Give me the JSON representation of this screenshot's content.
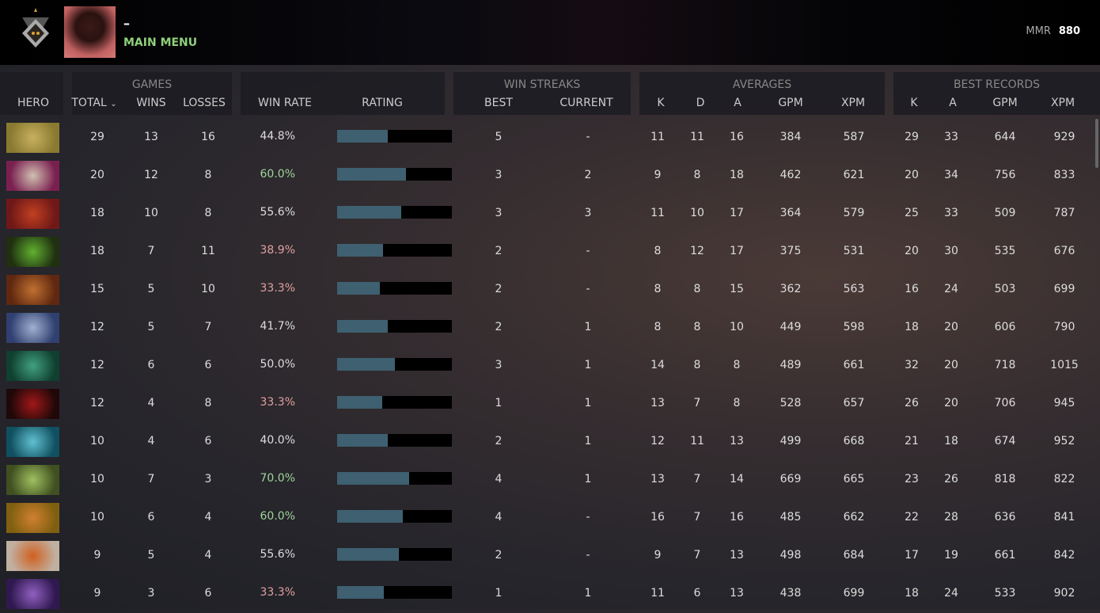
{
  "header": {
    "player_name": "–",
    "main_menu": "MAIN MENU",
    "mmr_label": "MMR",
    "mmr_value": "880"
  },
  "columns": {
    "hero": "HERO",
    "games": "GAMES",
    "total": "TOTAL",
    "sort_icon": "chevron-down-icon",
    "wins": "WINS",
    "losses": "LOSSES",
    "win_rate": "WIN RATE",
    "rating": "RATING",
    "win_streaks": "WIN STREAKS",
    "best": "BEST",
    "current": "CURRENT",
    "averages": "AVERAGES",
    "k": "K",
    "d": "D",
    "a": "A",
    "gpm": "GPM",
    "xpm": "XPM",
    "best_records": "BEST RECORDS"
  },
  "colors": {
    "win_rate_high": "#9fd59a",
    "win_rate_low": "#e0a0a0",
    "bar_fill": "#3e6070",
    "accent": "#8fd07a"
  },
  "rows": [
    {
      "hero_color": [
        "#8a7a30",
        "#c8b060"
      ],
      "total": "29",
      "wins": "13",
      "losses": "16",
      "win_rate": "44.8%",
      "rating": 0.44,
      "best": "5",
      "current": "-",
      "k": "11",
      "d": "11",
      "a": "16",
      "gpm": "384",
      "xpm": "587",
      "br_k": "29",
      "br_a": "33",
      "br_gpm": "644",
      "br_xpm": "929"
    },
    {
      "hero_color": [
        "#7a2050",
        "#d0c0b0"
      ],
      "total": "20",
      "wins": "12",
      "losses": "8",
      "win_rate": "60.0%",
      "rating": 0.6,
      "best": "3",
      "current": "2",
      "k": "9",
      "d": "8",
      "a": "18",
      "gpm": "462",
      "xpm": "621",
      "br_k": "20",
      "br_a": "34",
      "br_gpm": "756",
      "br_xpm": "833"
    },
    {
      "hero_color": [
        "#701818",
        "#c04020"
      ],
      "total": "18",
      "wins": "10",
      "losses": "8",
      "win_rate": "55.6%",
      "rating": 0.56,
      "best": "3",
      "current": "3",
      "k": "11",
      "d": "10",
      "a": "17",
      "gpm": "364",
      "xpm": "579",
      "br_k": "25",
      "br_a": "33",
      "br_gpm": "509",
      "br_xpm": "787"
    },
    {
      "hero_color": [
        "#203010",
        "#60b030"
      ],
      "total": "18",
      "wins": "7",
      "losses": "11",
      "win_rate": "38.9%",
      "rating": 0.4,
      "best": "2",
      "current": "-",
      "k": "8",
      "d": "12",
      "a": "17",
      "gpm": "375",
      "xpm": "531",
      "br_k": "20",
      "br_a": "30",
      "br_gpm": "535",
      "br_xpm": "676"
    },
    {
      "hero_color": [
        "#602810",
        "#c07030"
      ],
      "total": "15",
      "wins": "5",
      "losses": "10",
      "win_rate": "33.3%",
      "rating": 0.37,
      "best": "2",
      "current": "-",
      "k": "8",
      "d": "8",
      "a": "15",
      "gpm": "362",
      "xpm": "563",
      "br_k": "16",
      "br_a": "24",
      "br_gpm": "503",
      "br_xpm": "699"
    },
    {
      "hero_color": [
        "#304070",
        "#a0b0d0"
      ],
      "total": "12",
      "wins": "5",
      "losses": "7",
      "win_rate": "41.7%",
      "rating": 0.44,
      "best": "2",
      "current": "1",
      "k": "8",
      "d": "8",
      "a": "10",
      "gpm": "449",
      "xpm": "598",
      "br_k": "18",
      "br_a": "20",
      "br_gpm": "606",
      "br_xpm": "790"
    },
    {
      "hero_color": [
        "#104030",
        "#40a080"
      ],
      "total": "12",
      "wins": "6",
      "losses": "6",
      "win_rate": "50.0%",
      "rating": 0.5,
      "best": "3",
      "current": "1",
      "k": "14",
      "d": "8",
      "a": "8",
      "gpm": "489",
      "xpm": "661",
      "br_k": "32",
      "br_a": "20",
      "br_gpm": "718",
      "br_xpm": "1015"
    },
    {
      "hero_color": [
        "#200808",
        "#a01818"
      ],
      "total": "12",
      "wins": "4",
      "losses": "8",
      "win_rate": "33.3%",
      "rating": 0.39,
      "best": "1",
      "current": "1",
      "k": "13",
      "d": "7",
      "a": "8",
      "gpm": "528",
      "xpm": "657",
      "br_k": "26",
      "br_a": "20",
      "br_gpm": "706",
      "br_xpm": "945"
    },
    {
      "hero_color": [
        "#105060",
        "#60c0d0"
      ],
      "total": "10",
      "wins": "4",
      "losses": "6",
      "win_rate": "40.0%",
      "rating": 0.44,
      "best": "2",
      "current": "1",
      "k": "12",
      "d": "11",
      "a": "13",
      "gpm": "499",
      "xpm": "668",
      "br_k": "21",
      "br_a": "18",
      "br_gpm": "674",
      "br_xpm": "952"
    },
    {
      "hero_color": [
        "#405020",
        "#a0c060"
      ],
      "total": "10",
      "wins": "7",
      "losses": "3",
      "win_rate": "70.0%",
      "rating": 0.63,
      "best": "4",
      "current": "1",
      "k": "13",
      "d": "7",
      "a": "14",
      "gpm": "669",
      "xpm": "665",
      "br_k": "23",
      "br_a": "26",
      "br_gpm": "818",
      "br_xpm": "822"
    },
    {
      "hero_color": [
        "#806010",
        "#d08030"
      ],
      "total": "10",
      "wins": "6",
      "losses": "4",
      "win_rate": "60.0%",
      "rating": 0.57,
      "best": "4",
      "current": "-",
      "k": "16",
      "d": "7",
      "a": "16",
      "gpm": "485",
      "xpm": "662",
      "br_k": "22",
      "br_a": "28",
      "br_gpm": "636",
      "br_xpm": "841"
    },
    {
      "hero_color": [
        "#c0b0a0",
        "#d06020"
      ],
      "total": "9",
      "wins": "5",
      "losses": "4",
      "win_rate": "55.6%",
      "rating": 0.54,
      "best": "2",
      "current": "-",
      "k": "9",
      "d": "7",
      "a": "13",
      "gpm": "498",
      "xpm": "684",
      "br_k": "17",
      "br_a": "19",
      "br_gpm": "661",
      "br_xpm": "842"
    },
    {
      "hero_color": [
        "#301850",
        "#9060c0"
      ],
      "total": "9",
      "wins": "3",
      "losses": "6",
      "win_rate": "33.3%",
      "rating": 0.41,
      "best": "1",
      "current": "1",
      "k": "11",
      "d": "6",
      "a": "13",
      "gpm": "438",
      "xpm": "699",
      "br_k": "18",
      "br_a": "24",
      "br_gpm": "533",
      "br_xpm": "902"
    }
  ]
}
